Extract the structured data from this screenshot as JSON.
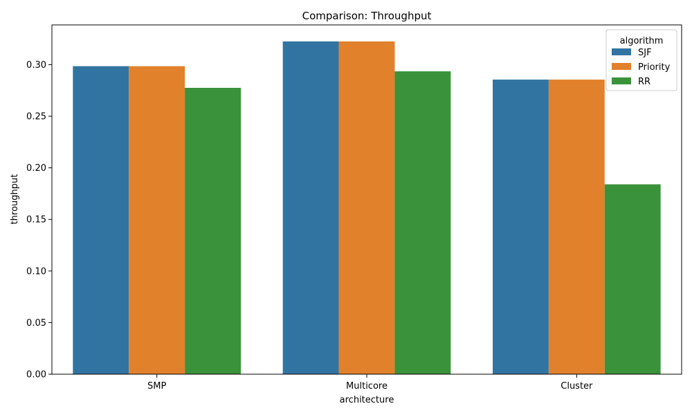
{
  "chart_data": {
    "type": "bar",
    "title": "Comparison: Throughput",
    "xlabel": "architecture",
    "ylabel": "throughput",
    "categories": [
      "SMP",
      "Multicore",
      "Cluster"
    ],
    "series": [
      {
        "name": "SJF",
        "values": [
          0.2985,
          0.3225,
          0.2855
        ],
        "color": "#3274a1"
      },
      {
        "name": "Priority",
        "values": [
          0.2985,
          0.3225,
          0.2855
        ],
        "color": "#e1812c"
      },
      {
        "name": "RR",
        "values": [
          0.2775,
          0.2935,
          0.184
        ],
        "color": "#3a923a"
      }
    ],
    "ylim": [
      0,
      0.3385
    ],
    "yticks": [
      0.0,
      0.05,
      0.1,
      0.15,
      0.2,
      0.25,
      0.3
    ],
    "ytick_labels": [
      "0.00",
      "0.05",
      "0.10",
      "0.15",
      "0.20",
      "0.25",
      "0.30"
    ],
    "legend": {
      "title": "algorithm",
      "position": "top-right"
    },
    "grid": false
  }
}
